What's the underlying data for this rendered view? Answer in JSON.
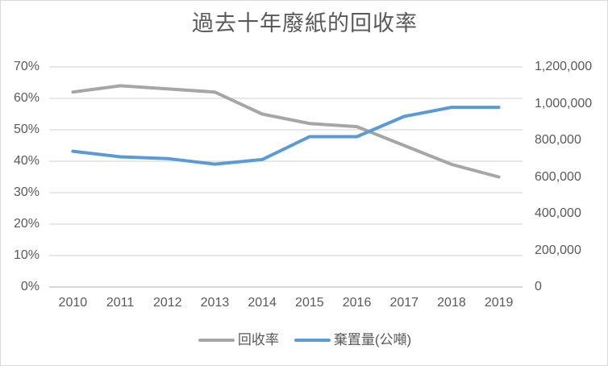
{
  "colors": {
    "background": "#ffffff",
    "border": "#d9d9d9",
    "gridline": "#d9d9d9",
    "axis_line": "#bfbfbf",
    "text": "#595959"
  },
  "chart_data": {
    "type": "line",
    "title": "過去十年廢紙的回收率",
    "categories": [
      "2010",
      "2011",
      "2012",
      "2013",
      "2014",
      "2015",
      "2016",
      "2017",
      "2018",
      "2019"
    ],
    "series": [
      {
        "key": "recycling-rate",
        "name": "回收率",
        "axis": "left",
        "color": "#a6a6a6",
        "values": [
          62,
          64,
          63,
          62,
          55,
          52,
          51,
          45,
          39,
          35
        ],
        "unit": "%"
      },
      {
        "key": "disposal-quantity",
        "name": "棄置量(公噸)",
        "axis": "right",
        "color": "#5b9bd5",
        "values": [
          740000,
          710000,
          700000,
          670000,
          695000,
          820000,
          820000,
          930000,
          980000,
          980000
        ],
        "unit": "公噸"
      }
    ],
    "left_axis": {
      "min": 0,
      "max": 70,
      "step": 10,
      "ticks": [
        "70%",
        "60%",
        "50%",
        "40%",
        "30%",
        "20%",
        "10%",
        "0%"
      ]
    },
    "right_axis": {
      "min": 0,
      "max": 1200000,
      "step": 200000,
      "ticks": [
        "1,200,000",
        "1,000,000",
        "800,000",
        "600,000",
        "400,000",
        "200,000",
        "0"
      ]
    },
    "grid": true,
    "legend_position": "bottom"
  }
}
